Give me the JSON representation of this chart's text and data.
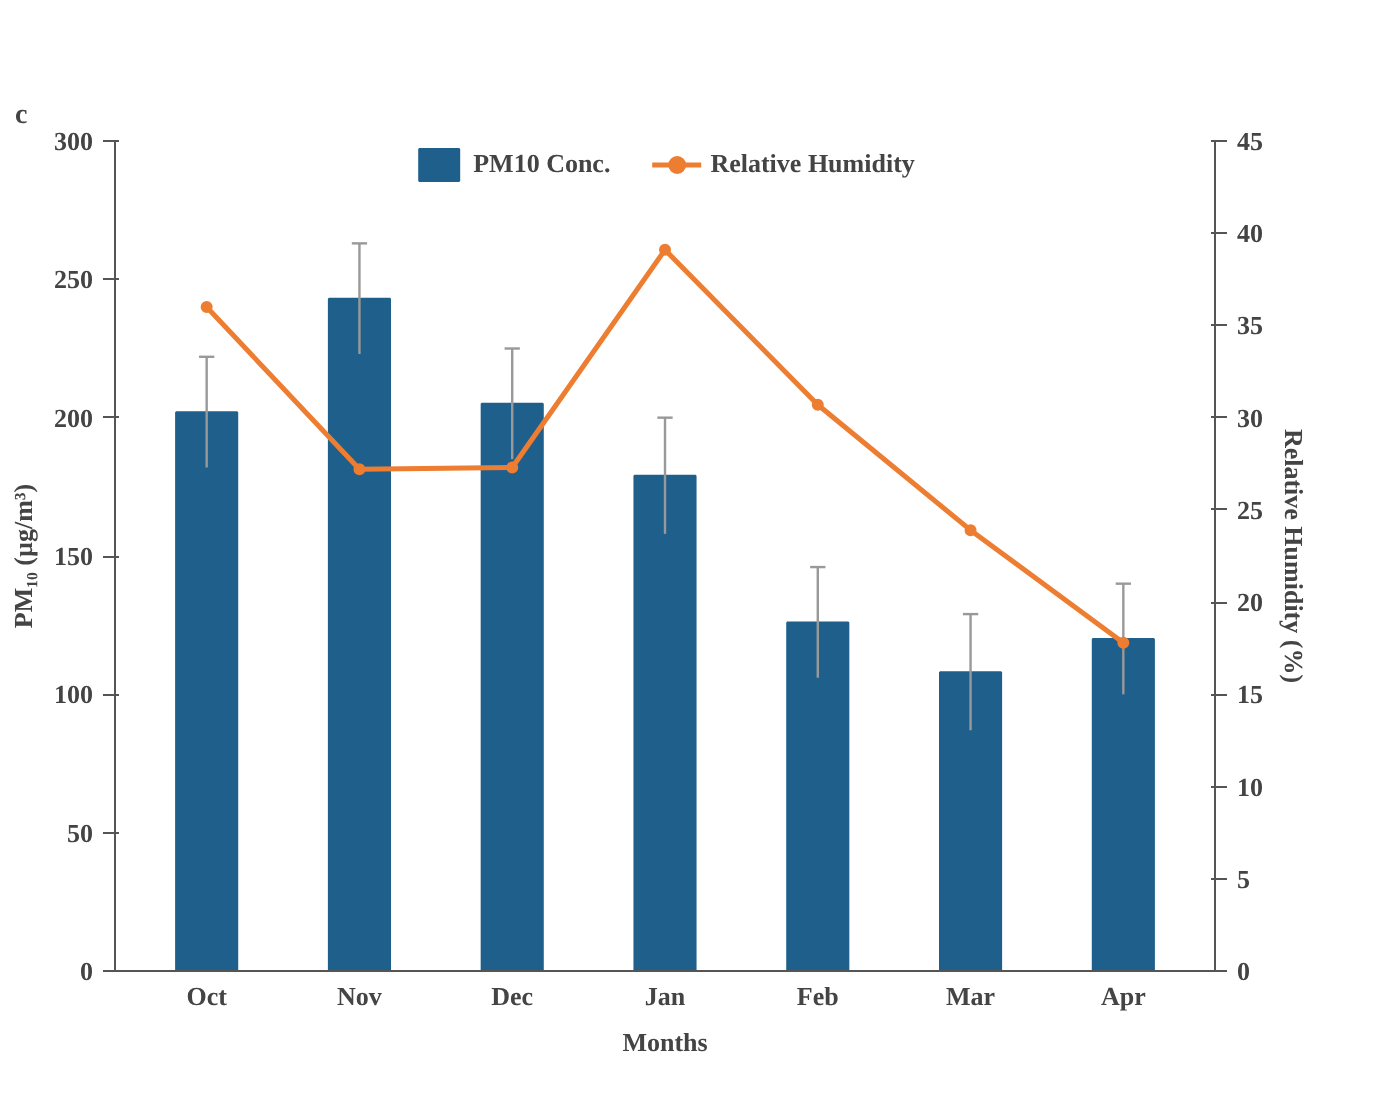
{
  "chart_data": {
    "type": "bar",
    "annotations": [
      "c"
    ],
    "categories": [
      "Oct",
      "Nov",
      "Dec",
      "Jan",
      "Feb",
      "Mar",
      "Apr"
    ],
    "xlabel": "Months",
    "ylabel": "PM₁₀ (µg/m³)",
    "y2label": "Relative Humidity (%)",
    "series": [
      {
        "name": "PM10 Conc.",
        "type": "bar",
        "color": "#1f5f8b",
        "values": [
          202,
          243,
          205,
          179,
          126,
          108,
          120
        ],
        "errors": [
          20,
          20,
          20,
          21,
          20,
          21,
          20
        ]
      },
      {
        "name": "Relative Humidity",
        "type": "line",
        "axis": "y2",
        "color": "#ed7d31",
        "marker": "circle",
        "values": [
          36.0,
          27.2,
          27.3,
          39.1,
          30.7,
          23.9,
          17.8
        ]
      }
    ],
    "ylim": [
      0,
      300
    ],
    "yticks": [
      0,
      50,
      100,
      150,
      200,
      250,
      300
    ],
    "y2lim": [
      0,
      45
    ],
    "y2ticks": [
      0,
      5,
      10,
      15,
      20,
      25,
      30,
      35,
      40,
      45
    ],
    "grid": false,
    "legend": "top"
  }
}
